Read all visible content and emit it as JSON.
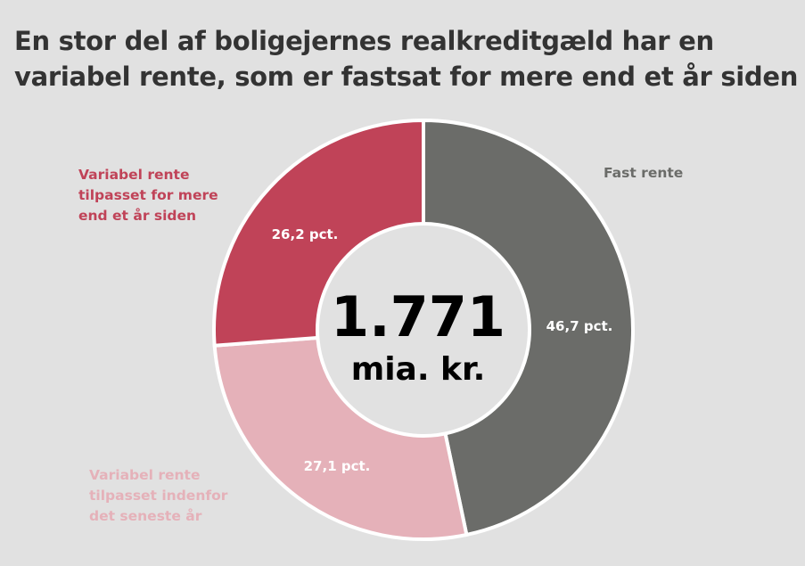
{
  "title": {
    "line1": "En stor del af boligejernes realkreditgæld har en",
    "line2": "variabel rente, som er fastsat for mere end et år siden"
  },
  "chart_data": {
    "type": "pie",
    "subtype": "donut",
    "title": "En stor del af boligejernes realkreditgæld har en variabel rente, som er fastsat for mere end et år siden",
    "center_value": "1.771",
    "center_unit": "mia. kr.",
    "slices": [
      {
        "name": "Fast rente",
        "label_lines": [
          "Fast rente"
        ],
        "value": 46.7,
        "value_label": "46,7 pct.",
        "color": "#6b6c69"
      },
      {
        "name": "Variabel rente tilpasset indenfor det seneste år",
        "label_lines": [
          "Variabel rente",
          "tilpasset indenfor",
          "det seneste år"
        ],
        "value": 27.1,
        "value_label": "27,1 pct.",
        "color": "#e5b1b9",
        "label_color": "#e5b1b9"
      },
      {
        "name": "Variabel rente tilpasset for mere end et år siden",
        "label_lines": [
          "Variabel rente",
          "tilpasset for mere",
          "end et år siden"
        ],
        "value": 26.2,
        "value_label": "26,2 pct.",
        "color": "#c04358",
        "label_color": "#c04358"
      }
    ],
    "start_angle_deg": 0,
    "direction": "clockwise"
  }
}
